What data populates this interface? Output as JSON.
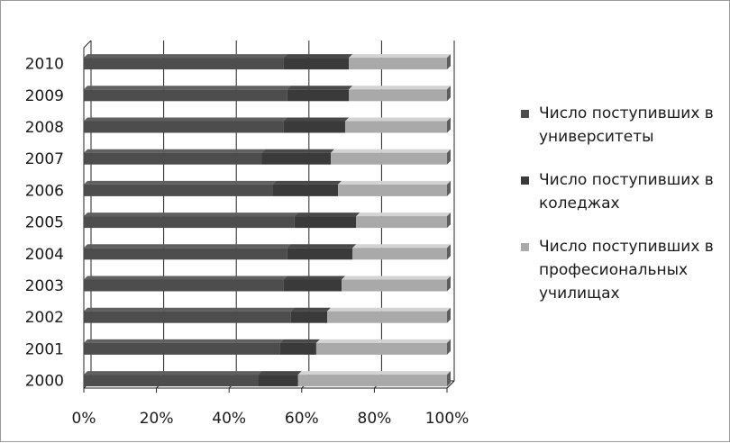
{
  "chart_data": {
    "type": "bar",
    "orientation": "horizontal",
    "stacked": "percent",
    "three_d": true,
    "categories": [
      "2000",
      "2001",
      "2002",
      "2003",
      "2004",
      "2005",
      "2006",
      "2007",
      "2008",
      "2009",
      "2010"
    ],
    "series": [
      {
        "name": "Число поступивших в университеты",
        "color": "#4d4d4d",
        "values": [
          48,
          54,
          57,
          55,
          56,
          58,
          52,
          49,
          55,
          56,
          55
        ]
      },
      {
        "name": "Число поступивших в коледжах",
        "color": "#3a3a3a",
        "values": [
          11,
          10,
          10,
          16,
          18,
          17,
          18,
          19,
          17,
          17,
          18
        ]
      },
      {
        "name": "Число поступивших в професиональных училищах",
        "color": "#a9a9a9",
        "values": [
          41,
          36,
          33,
          29,
          26,
          25,
          30,
          32,
          28,
          27,
          27
        ]
      }
    ],
    "xlim": [
      0,
      100
    ],
    "x_ticks": [
      "0%",
      "20%",
      "40%",
      "60%",
      "80%",
      "100%"
    ],
    "grid": true,
    "legend_position": "right",
    "title": "",
    "xlabel": "",
    "ylabel": ""
  }
}
